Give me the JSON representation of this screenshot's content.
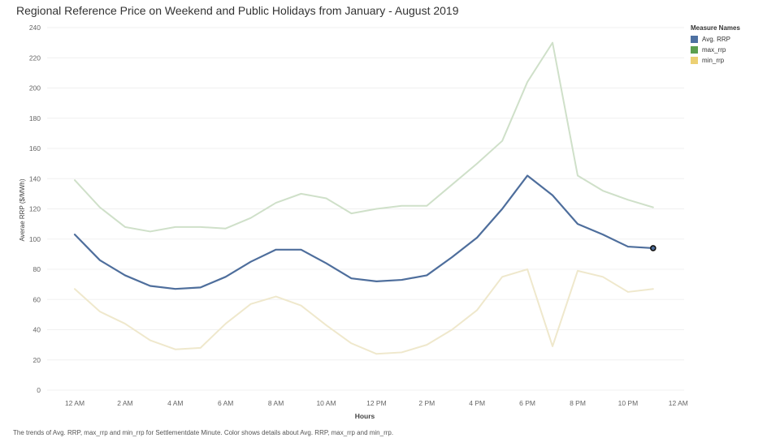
{
  "chart_data": {
    "type": "line",
    "title": "Regional Reference Price on Weekend and Public Holidays from January - August 2019",
    "xlabel": "Hours",
    "ylabel": "Averae RRP ($/MWh)",
    "x_tick_labels": [
      "12 AM",
      "2 AM",
      "4 AM",
      "6 AM",
      "8 AM",
      "10 AM",
      "12 PM",
      "2 PM",
      "4 PM",
      "6 PM",
      "8 PM",
      "10 PM",
      "12 AM"
    ],
    "x_hours": [
      0,
      1,
      2,
      3,
      4,
      5,
      6,
      7,
      8,
      9,
      10,
      11,
      12,
      13,
      14,
      15,
      16,
      17,
      18,
      19,
      20,
      21,
      22,
      23
    ],
    "xlim": [
      -1,
      24
    ],
    "ylim": [
      0,
      240
    ],
    "y_ticks": [
      0,
      20,
      40,
      60,
      80,
      100,
      120,
      140,
      160,
      180,
      200,
      220,
      240
    ],
    "series": [
      {
        "name": "max_rrp",
        "color": "#cfe0c9",
        "values": [
          139,
          121,
          108,
          105,
          108,
          108,
          107,
          114,
          124,
          130,
          127,
          117,
          120,
          122,
          122,
          136,
          150,
          165,
          204,
          230,
          142,
          132,
          126,
          121
        ]
      },
      {
        "name": "min_rrp",
        "color": "#efe8cc",
        "values": [
          67,
          52,
          44,
          33,
          27,
          28,
          44,
          57,
          62,
          56,
          43,
          31,
          24,
          25,
          30,
          40,
          53,
          75,
          80,
          29,
          79,
          75,
          65,
          67
        ]
      },
      {
        "name": "Avg. RRP",
        "color": "#4e6e9c",
        "values": [
          103,
          86,
          76,
          69,
          67,
          68,
          75,
          85,
          93,
          93,
          84,
          74,
          72,
          73,
          76,
          88,
          101,
          120,
          142,
          129,
          110,
          103,
          95,
          94
        ]
      }
    ],
    "legend": {
      "title": "Measure Names",
      "position": "top-right",
      "items": [
        {
          "label": "Avg. RRP",
          "color": "#4e71a2"
        },
        {
          "label": "max_rrp",
          "color": "#5b9f4f"
        },
        {
          "label": "min_rrp",
          "color": "#ecd073"
        }
      ]
    },
    "highlighted_point": {
      "series": "Avg. RRP",
      "hour": 23,
      "value": 94
    },
    "caption": "The trends of Avg. RRP, max_rrp and min_rrp for Settlementdate Minute.  Color shows details about Avg. RRP, max_rrp and min_rrp."
  }
}
